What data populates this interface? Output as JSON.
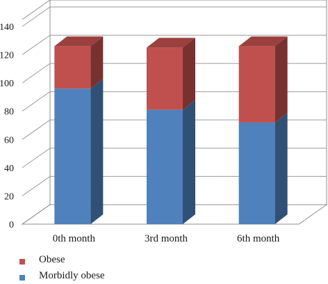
{
  "chart_data": {
    "type": "bar",
    "stacked": true,
    "three_d": true,
    "categories": [
      "0th month",
      "3rd month",
      "6th month"
    ],
    "series": [
      {
        "name": "Morbidly obese",
        "values": [
          96,
          81,
          72
        ],
        "color": "#4f81bd"
      },
      {
        "name": "Obese",
        "values": [
          30,
          44,
          54
        ],
        "color": "#c0504d"
      }
    ],
    "y_ticks": [
      "0",
      "20",
      "40",
      "60",
      "80",
      "100",
      "120",
      "140"
    ],
    "ylim": [
      0,
      140
    ],
    "grid": true,
    "legend_position": "bottom-left",
    "title": "",
    "xlabel": "",
    "ylabel": ""
  }
}
